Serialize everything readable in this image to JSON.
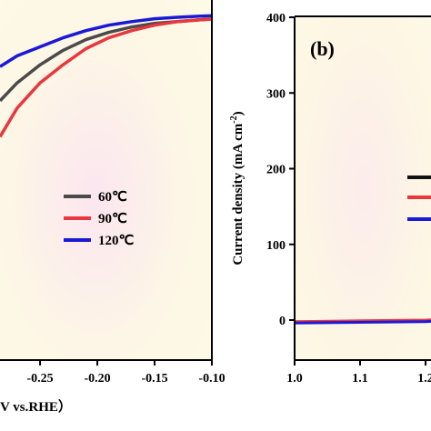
{
  "chart_data": [
    {
      "type": "line",
      "panel": "a",
      "xlabel": "V vs.RHE）",
      "x_ticks": [
        "-0.25",
        "-0.20",
        "-0.15",
        "-0.10"
      ],
      "xlim": [
        -0.285,
        -0.1
      ],
      "ylim": [
        0,
        1
      ],
      "legend_placement": "middle",
      "series": [
        {
          "name": "60℃",
          "color": "#4a4a4a",
          "x": [
            -0.285,
            -0.27,
            -0.25,
            -0.23,
            -0.21,
            -0.19,
            -0.17,
            -0.15,
            -0.13,
            -0.11,
            -0.1
          ],
          "y": [
            0.72,
            0.77,
            0.82,
            0.86,
            0.89,
            0.91,
            0.925,
            0.935,
            0.94,
            0.945,
            0.947
          ]
        },
        {
          "name": "90℃",
          "color": "#e8373d",
          "x": [
            -0.285,
            -0.27,
            -0.25,
            -0.23,
            -0.21,
            -0.19,
            -0.17,
            -0.15,
            -0.13,
            -0.11,
            -0.1
          ],
          "y": [
            0.62,
            0.7,
            0.77,
            0.82,
            0.865,
            0.895,
            0.915,
            0.93,
            0.94,
            0.945,
            0.947
          ]
        },
        {
          "name": "120℃",
          "color": "#1a1ad6",
          "x": [
            -0.285,
            -0.27,
            -0.25,
            -0.23,
            -0.21,
            -0.19,
            -0.17,
            -0.15,
            -0.13,
            -0.11,
            -0.1
          ],
          "y": [
            0.815,
            0.845,
            0.87,
            0.895,
            0.915,
            0.93,
            0.94,
            0.948,
            0.952,
            0.955,
            0.956
          ]
        }
      ]
    },
    {
      "type": "line",
      "panel": "b",
      "panel_label": "(b)",
      "ylabel": "Current density (mA cm⁻²)",
      "y_ticks": [
        "0",
        "100",
        "200",
        "300",
        "400"
      ],
      "x_ticks": [
        "1.0",
        "1.1",
        "1.2"
      ],
      "xlim": [
        1.0,
        1.3
      ],
      "ylim": [
        -50,
        400
      ],
      "series": [
        {
          "color": "#111111",
          "x": [
            1.0,
            1.1,
            1.2,
            1.25,
            1.3
          ],
          "y": [
            -3,
            -2,
            -1,
            1,
            4
          ]
        },
        {
          "color": "#e8373d",
          "x": [
            1.0,
            1.1,
            1.2,
            1.25,
            1.3
          ],
          "y": [
            -2,
            -1,
            0,
            2,
            6
          ]
        },
        {
          "color": "#1a1ad6",
          "x": [
            1.0,
            1.1,
            1.2,
            1.25,
            1.3
          ],
          "y": [
            -4,
            -3,
            -2,
            0,
            3
          ]
        }
      ]
    }
  ]
}
